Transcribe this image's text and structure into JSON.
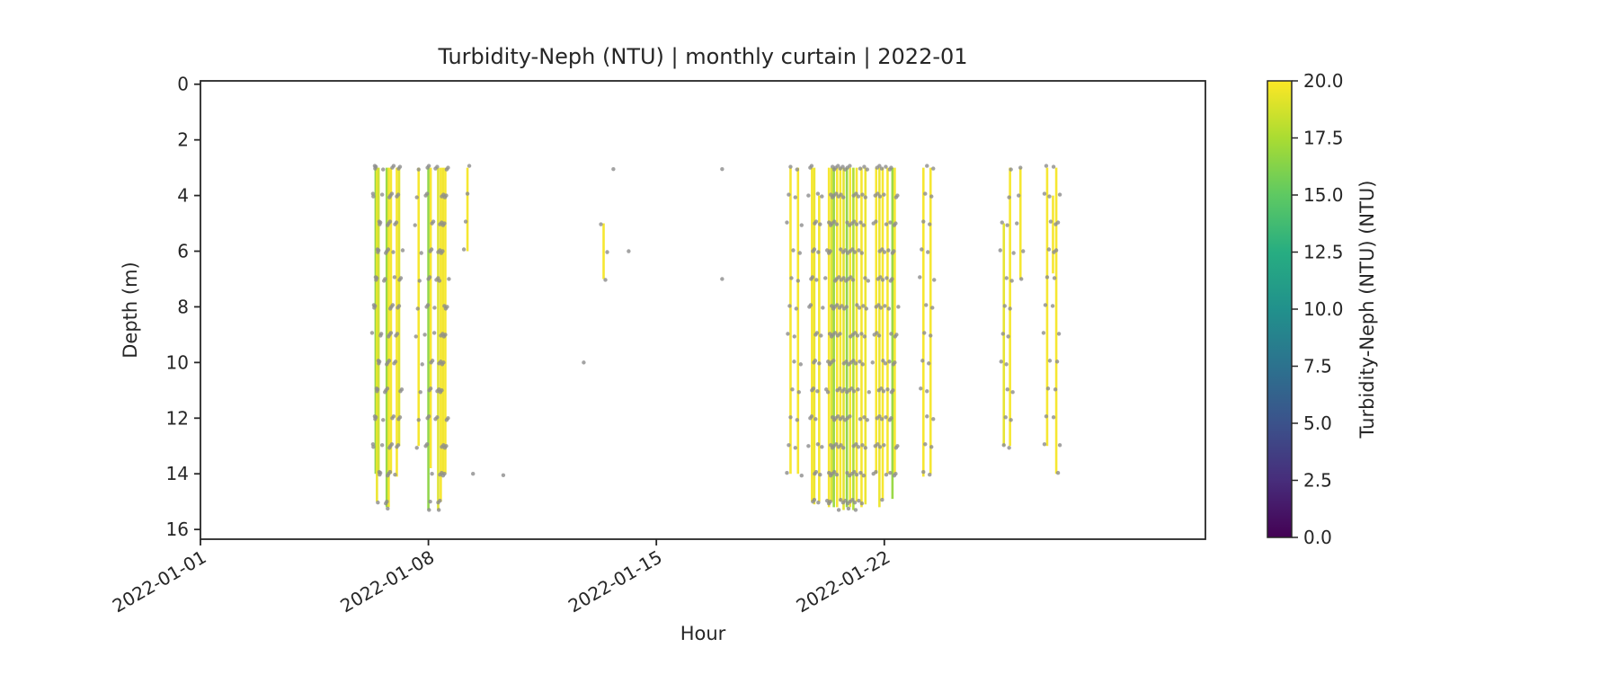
{
  "chart_data": {
    "type": "line",
    "variant": "vertical-profile-curtain",
    "title": "Turbidity-Neph (NTU) | monthly curtain | 2022-01",
    "xlabel": "Hour",
    "ylabel": "Depth (m)",
    "x_epoch": "2022-01-01",
    "xlim_days": [
      0,
      30.86
    ],
    "ylim": [
      -0.12,
      16.35
    ],
    "y_inverted": true,
    "xticks": [
      {
        "day": 0,
        "label": "2022-01-01"
      },
      {
        "day": 7,
        "label": "2022-01-08"
      },
      {
        "day": 14,
        "label": "2022-01-15"
      },
      {
        "day": 21,
        "label": "2022-01-22"
      }
    ],
    "yticks": [
      0,
      2,
      4,
      6,
      8,
      10,
      12,
      14,
      16
    ],
    "colorbar": {
      "label": "Turbidity-Neph (NTU) (NTU)",
      "vmin": 0.0,
      "vmax": 20.0,
      "ticks": [
        0.0,
        2.5,
        5.0,
        7.5,
        10.0,
        12.5,
        15.0,
        17.5,
        20.0
      ],
      "colormap": "viridis",
      "stops": [
        [
          0.0,
          "#440154"
        ],
        [
          0.125,
          "#472d7b"
        ],
        [
          0.25,
          "#3b528b"
        ],
        [
          0.375,
          "#2c728e"
        ],
        [
          0.5,
          "#21918c"
        ],
        [
          0.625,
          "#27ad81"
        ],
        [
          0.75,
          "#5ec962"
        ],
        [
          0.875,
          "#aadc32"
        ],
        [
          1.0,
          "#fde725"
        ]
      ]
    },
    "marker_color": "#8c8c8c",
    "spine_color": "#262626",
    "profiles_format": [
      "day_offset",
      "depth_min_m",
      "depth_max_m",
      "ntu"
    ],
    "profiles": [
      [
        5.38,
        3,
        14.0,
        16.5
      ],
      [
        5.42,
        3,
        15.0,
        19.5
      ],
      [
        5.47,
        3,
        14.0,
        18.5
      ],
      [
        5.72,
        3,
        15.2,
        16.8
      ],
      [
        5.78,
        3,
        15.2,
        19.6
      ],
      [
        5.85,
        3,
        14.0,
        19.8
      ],
      [
        6.03,
        3,
        14.1,
        19.8
      ],
      [
        6.1,
        3,
        13.0,
        19.2
      ],
      [
        6.7,
        3,
        13.0,
        19.8
      ],
      [
        7.0,
        3,
        15.3,
        16.5
      ],
      [
        7.07,
        3,
        13.8,
        19.8
      ],
      [
        7.3,
        3,
        15.3,
        19.0
      ],
      [
        7.38,
        3,
        15.0,
        19.8
      ],
      [
        7.45,
        3,
        14.0,
        19.6
      ],
      [
        7.52,
        3,
        14.0,
        19.8
      ],
      [
        8.2,
        3,
        6.0,
        19.8
      ],
      [
        12.38,
        5,
        7.0,
        19.8
      ],
      [
        18.12,
        3,
        14.0,
        19.8
      ],
      [
        18.35,
        3,
        14.0,
        19.8
      ],
      [
        18.78,
        3,
        15.0,
        19.8
      ],
      [
        18.85,
        3,
        15.1,
        19.5
      ],
      [
        19.0,
        4,
        15.0,
        19.8
      ],
      [
        19.3,
        3,
        15.2,
        19.8
      ],
      [
        19.38,
        3,
        15.0,
        19.0
      ],
      [
        19.45,
        3,
        15.2,
        16.8
      ],
      [
        19.55,
        3,
        15.2,
        19.8
      ],
      [
        19.65,
        3,
        15.0,
        19.8
      ],
      [
        19.75,
        3,
        15.3,
        19.2
      ],
      [
        19.85,
        3,
        15.2,
        16.5
      ],
      [
        19.95,
        3,
        15.2,
        19.8
      ],
      [
        20.05,
        3,
        15.3,
        17.5
      ],
      [
        20.15,
        3,
        15.0,
        19.8
      ],
      [
        20.3,
        3,
        15.2,
        19.8
      ],
      [
        20.42,
        3,
        15.1,
        19.5
      ],
      [
        20.75,
        3,
        14.0,
        19.8
      ],
      [
        20.85,
        3,
        15.2,
        19.5
      ],
      [
        20.95,
        3,
        14.9,
        19.8
      ],
      [
        21.1,
        3,
        14.0,
        19.8
      ],
      [
        21.25,
        3,
        14.9,
        16.8
      ],
      [
        21.32,
        3,
        14.0,
        19.8
      ],
      [
        22.2,
        3,
        14.1,
        19.8
      ],
      [
        22.42,
        3,
        14.0,
        19.8
      ],
      [
        24.67,
        5,
        13.0,
        19.3
      ],
      [
        24.86,
        3,
        13.0,
        19.8
      ],
      [
        25.18,
        3,
        7.0,
        19.8
      ],
      [
        26.0,
        3,
        13.0,
        19.8
      ],
      [
        26.18,
        4,
        6.8,
        19.8
      ],
      [
        26.28,
        3,
        14.0,
        19.8
      ]
    ],
    "isolated_points_format": [
      "day_offset",
      "depth_m"
    ],
    "isolated_points": [
      [
        8.37,
        14.0
      ],
      [
        11.77,
        10.0
      ],
      [
        12.68,
        3.05
      ],
      [
        13.15,
        6.0
      ],
      [
        16.02,
        3.05
      ],
      [
        16.02,
        7.0
      ],
      [
        5.75,
        15.25
      ],
      [
        7.02,
        15.3
      ],
      [
        7.32,
        15.3
      ],
      [
        19.6,
        15.3
      ],
      [
        19.9,
        15.25
      ],
      [
        20.12,
        15.3
      ],
      [
        9.3,
        14.05
      ]
    ]
  }
}
